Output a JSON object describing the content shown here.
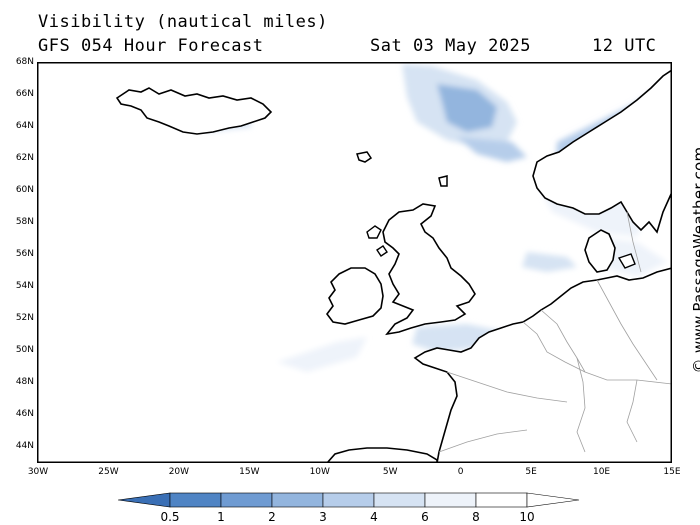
{
  "header": {
    "title": "Visibility (nautical miles)",
    "model": "GFS 054 Hour Forecast",
    "date": "Sat 03 May 2025",
    "time": "12 UTC"
  },
  "credit": "© www.PassageWeather.com",
  "axes": {
    "lat_labels": [
      "68N",
      "66N",
      "64N",
      "62N",
      "60N",
      "58N",
      "56N",
      "54N",
      "52N",
      "50N",
      "48N",
      "46N",
      "44N"
    ],
    "lon_labels": [
      "30W",
      "25W",
      "20W",
      "15W",
      "10W",
      "5W",
      "0",
      "5E",
      "10E",
      "15E"
    ]
  },
  "colorbar": {
    "labels": [
      "0.5",
      "1",
      "2",
      "3",
      "4",
      "6",
      "8",
      "10"
    ],
    "colors": [
      "#3a6fb5",
      "#4f84c4",
      "#6f9bd2",
      "#93b5de",
      "#b6cdea",
      "#d6e3f3",
      "#eef3fa",
      "#ffffff"
    ]
  },
  "map": {
    "land_color": "#ffffff",
    "sea_color": "#ffffff",
    "coast_color": "#000000",
    "border_color": "#a0a0a0"
  }
}
